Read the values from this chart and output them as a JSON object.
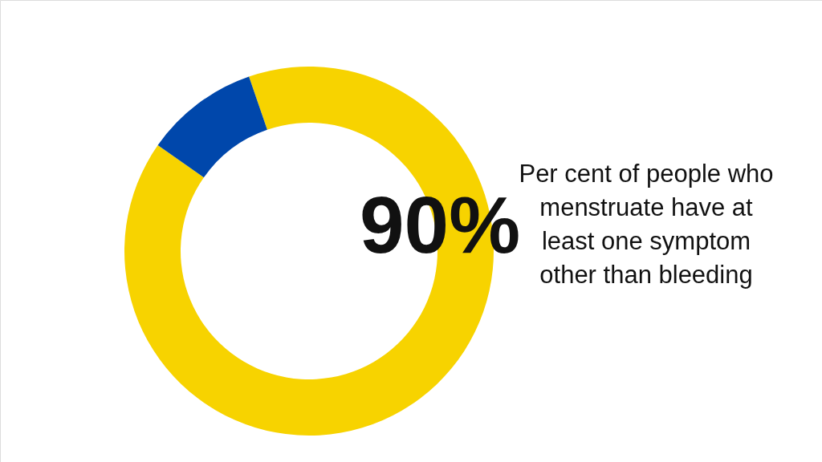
{
  "chart_data": {
    "type": "donut",
    "categories": [
      null,
      null
    ],
    "values": [
      90,
      10
    ],
    "colors": [
      "#f7d300",
      "#0047ab"
    ],
    "value_labels": [
      "90%",
      null
    ],
    "annotations": [
      "Per cent of people who\nmenstruate have at\nleast one symptom\nother than bleeding"
    ]
  }
}
